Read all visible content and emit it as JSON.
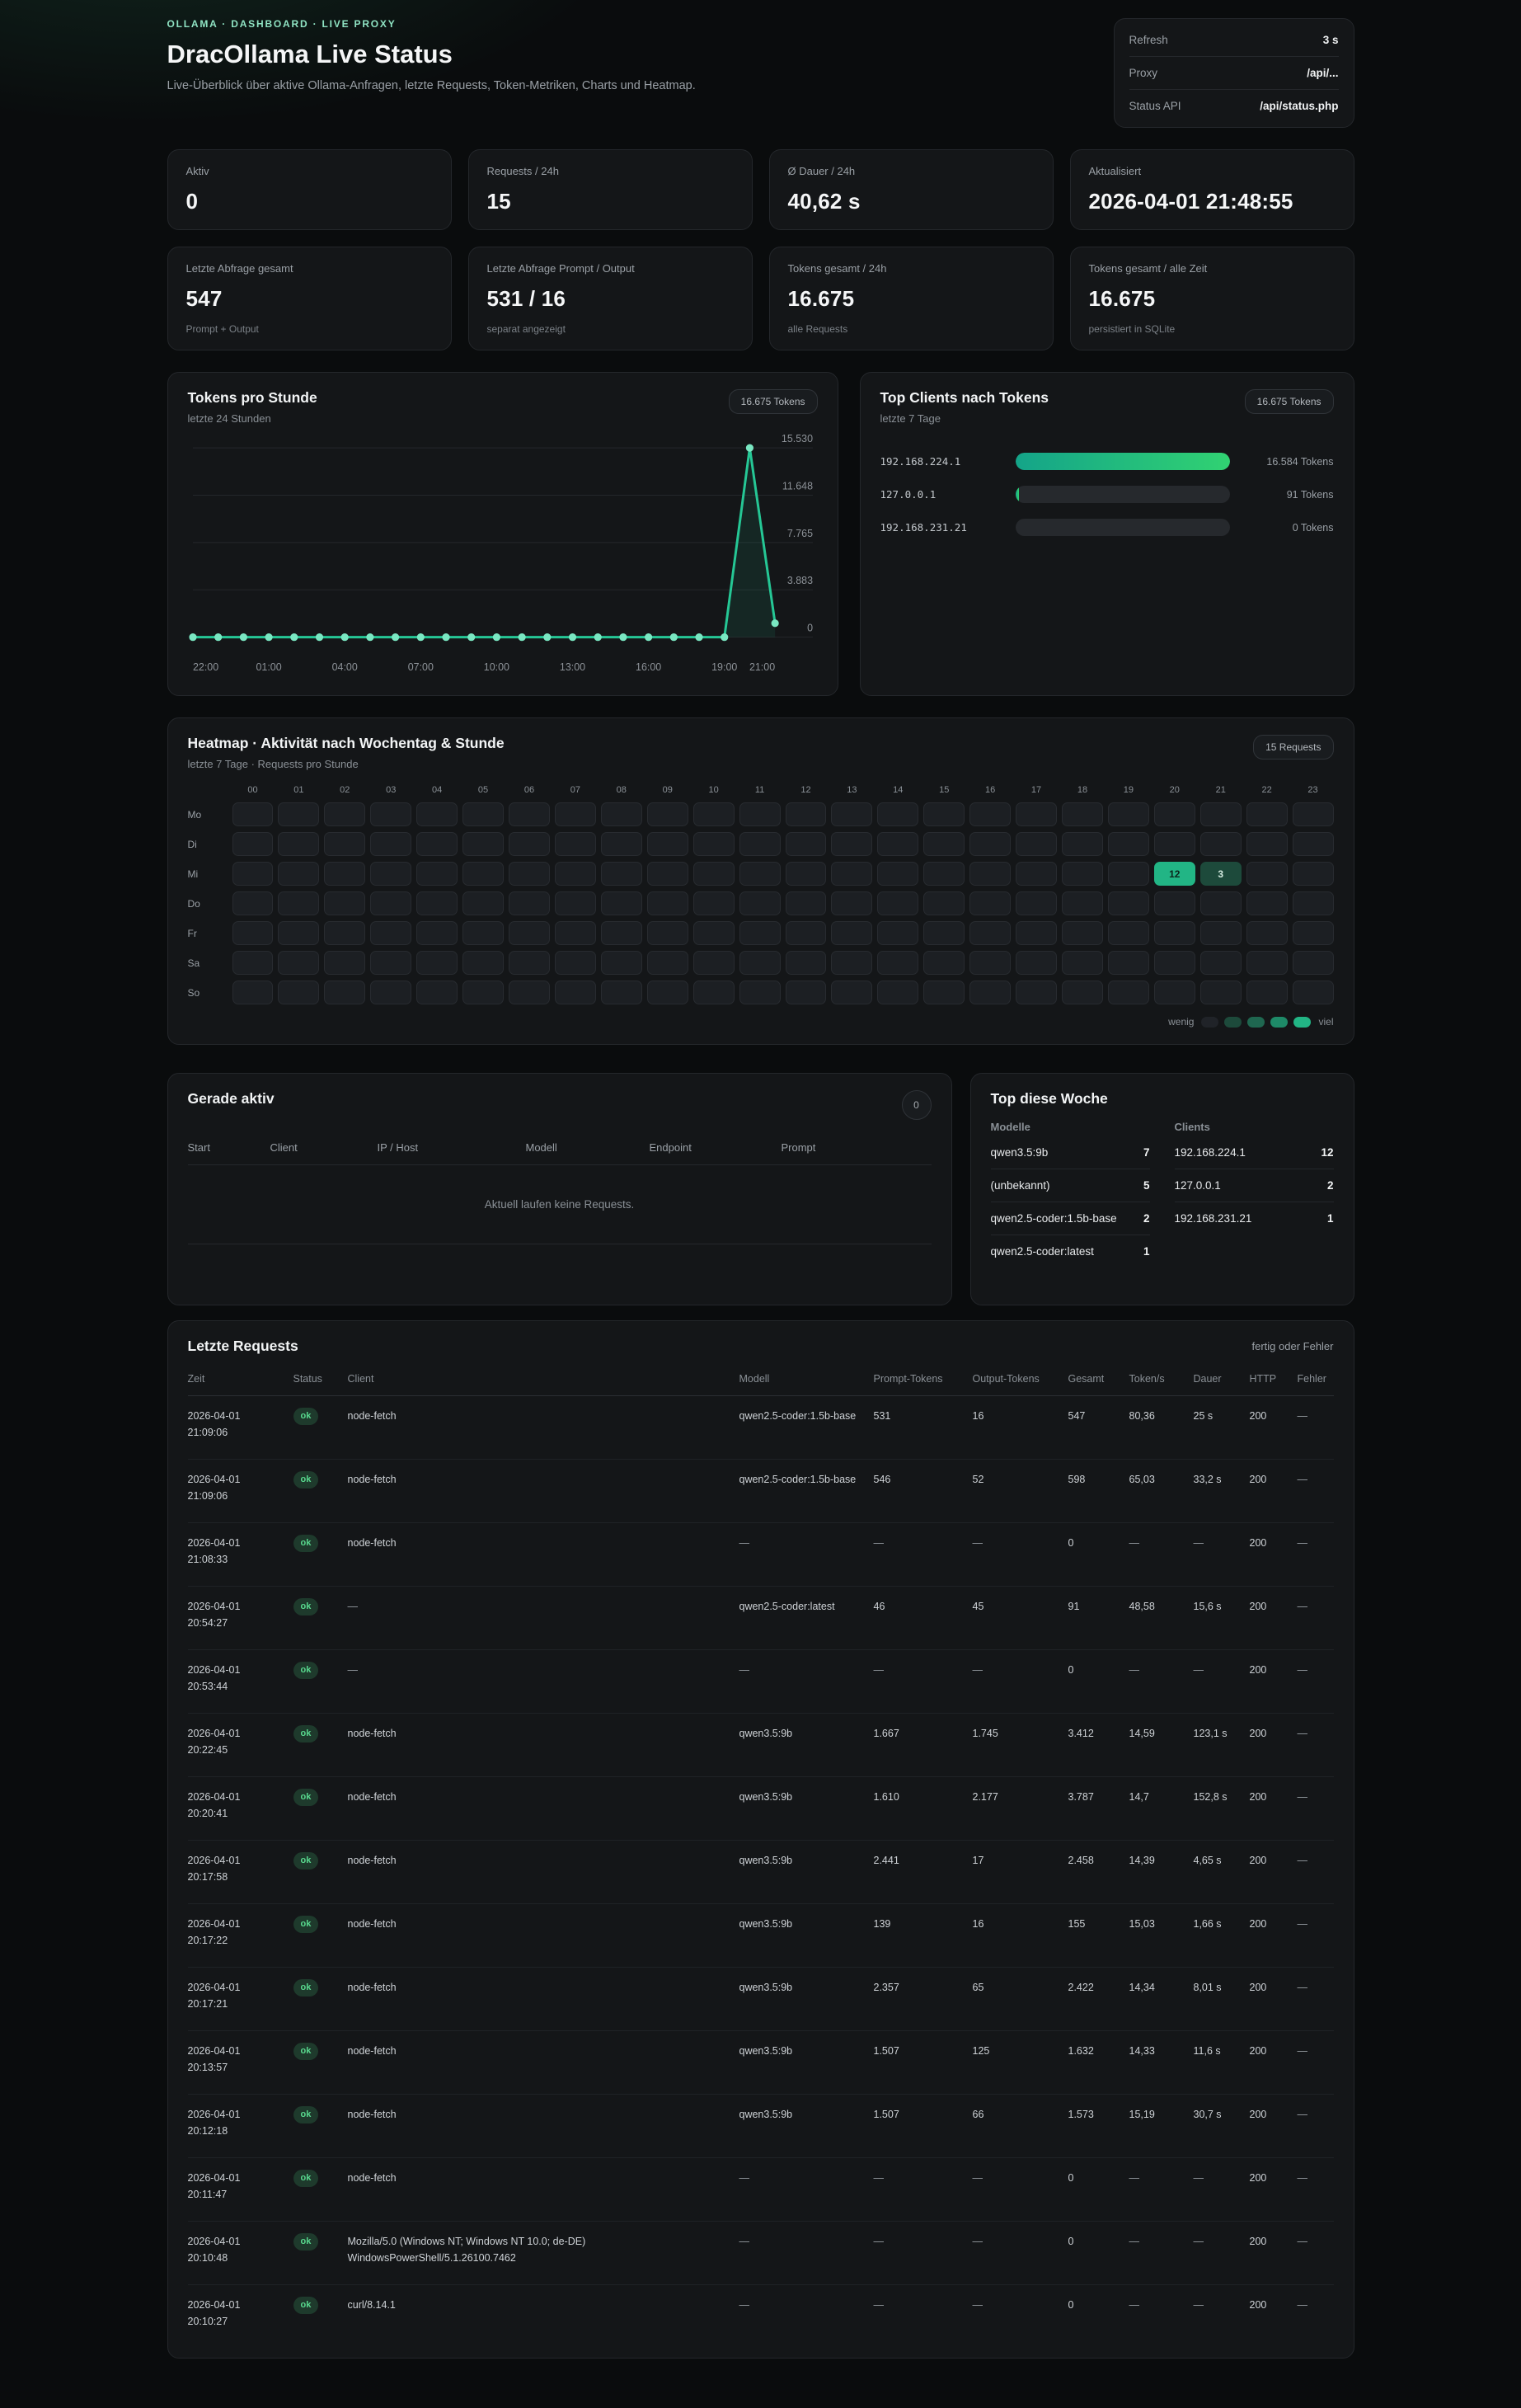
{
  "colors": {
    "accent": "#25c795",
    "heat_levels": [
      "#202328",
      "#1d4a3b",
      "#1f6750",
      "#1e8a68",
      "#22b585"
    ],
    "bar_gradient": [
      "#14a489",
      "#31d272"
    ],
    "ok_badge_text": "#58d88d"
  },
  "header": {
    "breadcrumb": "OLLAMA · DASHBOARD · LIVE PROXY",
    "title": "DracOllama Live Status",
    "subtitle": "Live-Überblick über aktive Ollama-Anfragen, letzte Requests, Token-Metriken, Charts und Heatmap.",
    "info": [
      {
        "label": "Refresh",
        "value": "3 s"
      },
      {
        "label": "Proxy",
        "value": "/api/..."
      },
      {
        "label": "Status API",
        "value": "/api/status.php"
      }
    ]
  },
  "stats_row1": [
    {
      "label": "Aktiv",
      "value": "0",
      "sub": ""
    },
    {
      "label": "Requests / 24h",
      "value": "15",
      "sub": ""
    },
    {
      "label": "Ø Dauer / 24h",
      "value": "40,62 s",
      "sub": ""
    },
    {
      "label": "Aktualisiert",
      "value": "2026-04-01 21:48:55",
      "sub": ""
    }
  ],
  "stats_row2": [
    {
      "label": "Letzte Abfrage gesamt",
      "value": "547",
      "sub": "Prompt + Output"
    },
    {
      "label": "Letzte Abfrage Prompt / Output",
      "value": "531 / 16",
      "sub": "separat angezeigt"
    },
    {
      "label": "Tokens gesamt / 24h",
      "value": "16.675",
      "sub": "alle Requests"
    },
    {
      "label": "Tokens gesamt / alle Zeit",
      "value": "16.675",
      "sub": "persistiert in SQLite"
    }
  ],
  "chart_data": {
    "type": "line",
    "title": "Tokens pro Stunde",
    "subtitle": "letzte 24 Stunden",
    "badge": "16.675 Tokens",
    "x": [
      "22:00",
      "23:00",
      "00:00",
      "01:00",
      "02:00",
      "03:00",
      "04:00",
      "05:00",
      "06:00",
      "07:00",
      "08:00",
      "09:00",
      "10:00",
      "11:00",
      "12:00",
      "13:00",
      "14:00",
      "15:00",
      "16:00",
      "17:00",
      "18:00",
      "19:00",
      "20:00",
      "21:00"
    ],
    "values": [
      0,
      0,
      0,
      0,
      0,
      0,
      0,
      0,
      0,
      0,
      0,
      0,
      0,
      0,
      0,
      0,
      0,
      0,
      0,
      0,
      0,
      0,
      15530,
      1145
    ],
    "ylim": [
      0,
      15530
    ],
    "grid": true,
    "legend": false,
    "y_ticks": [
      {
        "value": 0,
        "label": "0"
      },
      {
        "value": 3883,
        "label": "3.883"
      },
      {
        "value": 7765,
        "label": "7.765"
      },
      {
        "value": 11648,
        "label": "11.648"
      },
      {
        "value": 15530,
        "label": "15.530"
      }
    ],
    "x_ticks": [
      {
        "index": 0,
        "label": "22:00"
      },
      {
        "index": 3,
        "label": "01:00"
      },
      {
        "index": 6,
        "label": "04:00"
      },
      {
        "index": 9,
        "label": "07:00"
      },
      {
        "index": 12,
        "label": "10:00"
      },
      {
        "index": 15,
        "label": "13:00"
      },
      {
        "index": 18,
        "label": "16:00"
      },
      {
        "index": 21,
        "label": "19:00"
      },
      {
        "index": 23,
        "label": "21:00"
      }
    ]
  },
  "top_clients": {
    "title": "Top Clients nach Tokens",
    "subtitle": "letzte 7 Tage",
    "badge": "16.675 Tokens",
    "rows": [
      {
        "ip": "192.168.224.1",
        "tokens": 16584,
        "label": "16.584 Tokens"
      },
      {
        "ip": "127.0.0.1",
        "tokens": 91,
        "label": "91 Tokens"
      },
      {
        "ip": "192.168.231.21",
        "tokens": 0,
        "label": "0 Tokens"
      }
    ]
  },
  "heatmap": {
    "title": "Heatmap · Aktivität nach Wochentag & Stunde",
    "subtitle": "letzte 7 Tage · Requests pro Stunde",
    "badge": "15 Requests",
    "hours": [
      "00",
      "01",
      "02",
      "03",
      "04",
      "05",
      "06",
      "07",
      "08",
      "09",
      "10",
      "11",
      "12",
      "13",
      "14",
      "15",
      "16",
      "17",
      "18",
      "19",
      "20",
      "21",
      "22",
      "23"
    ],
    "days": [
      "Mo",
      "Di",
      "Mi",
      "Do",
      "Fr",
      "Sa",
      "So"
    ],
    "max": 12,
    "cells": [
      {
        "day": "Mi",
        "hour": 20,
        "value": 12
      },
      {
        "day": "Mi",
        "hour": 21,
        "value": 3
      }
    ],
    "legend_low": "wenig",
    "legend_high": "viel"
  },
  "active": {
    "title": "Gerade aktiv",
    "badge": "0",
    "columns": [
      "Start",
      "Client",
      "IP / Host",
      "Modell",
      "Endpoint",
      "Prompt"
    ],
    "empty_message": "Aktuell laufen keine Requests."
  },
  "top_week": {
    "title": "Top diese Woche",
    "models_label": "Modelle",
    "clients_label": "Clients",
    "models": [
      {
        "name": "qwen3.5:9b",
        "count": "7"
      },
      {
        "name": "(unbekannt)",
        "count": "5"
      },
      {
        "name": "qwen2.5-coder:1.5b-base",
        "count": "2"
      },
      {
        "name": "qwen2.5-coder:latest",
        "count": "1"
      }
    ],
    "clients": [
      {
        "name": "192.168.224.1",
        "count": "12"
      },
      {
        "name": "127.0.0.1",
        "count": "2"
      },
      {
        "name": "192.168.231.21",
        "count": "1"
      }
    ]
  },
  "requests": {
    "title": "Letzte Requests",
    "note": "fertig oder Fehler",
    "columns": [
      "Zeit",
      "Status",
      "Client",
      "Modell",
      "Prompt-Tokens",
      "Output-Tokens",
      "Gesamt",
      "Token/s",
      "Dauer",
      "HTTP",
      "Fehler"
    ],
    "rows": [
      {
        "date": "2026-04-01",
        "time": "21:09:06",
        "status": "ok",
        "client": "node-fetch",
        "modell": "qwen2.5-coder:1.5b-base",
        "prompt": "531",
        "output": "16",
        "gesamt": "547",
        "tokens_s": "80,36",
        "dauer": "25 s",
        "http": "200",
        "fehler": "—"
      },
      {
        "date": "2026-04-01",
        "time": "21:09:06",
        "status": "ok",
        "client": "node-fetch",
        "modell": "qwen2.5-coder:1.5b-base",
        "prompt": "546",
        "output": "52",
        "gesamt": "598",
        "tokens_s": "65,03",
        "dauer": "33,2 s",
        "http": "200",
        "fehler": "—"
      },
      {
        "date": "2026-04-01",
        "time": "21:08:33",
        "status": "ok",
        "client": "node-fetch",
        "modell": "—",
        "prompt": "—",
        "output": "—",
        "gesamt": "0",
        "tokens_s": "—",
        "dauer": "—",
        "http": "200",
        "fehler": "—"
      },
      {
        "date": "2026-04-01",
        "time": "20:54:27",
        "status": "ok",
        "client": "—",
        "modell": "qwen2.5-coder:latest",
        "prompt": "46",
        "output": "45",
        "gesamt": "91",
        "tokens_s": "48,58",
        "dauer": "15,6 s",
        "http": "200",
        "fehler": "—"
      },
      {
        "date": "2026-04-01",
        "time": "20:53:44",
        "status": "ok",
        "client": "—",
        "modell": "—",
        "prompt": "—",
        "output": "—",
        "gesamt": "0",
        "tokens_s": "—",
        "dauer": "—",
        "http": "200",
        "fehler": "—"
      },
      {
        "date": "2026-04-01",
        "time": "20:22:45",
        "status": "ok",
        "client": "node-fetch",
        "modell": "qwen3.5:9b",
        "prompt": "1.667",
        "output": "1.745",
        "gesamt": "3.412",
        "tokens_s": "14,59",
        "dauer": "123,1 s",
        "http": "200",
        "fehler": "—"
      },
      {
        "date": "2026-04-01",
        "time": "20:20:41",
        "status": "ok",
        "client": "node-fetch",
        "modell": "qwen3.5:9b",
        "prompt": "1.610",
        "output": "2.177",
        "gesamt": "3.787",
        "tokens_s": "14,7",
        "dauer": "152,8 s",
        "http": "200",
        "fehler": "—"
      },
      {
        "date": "2026-04-01",
        "time": "20:17:58",
        "status": "ok",
        "client": "node-fetch",
        "modell": "qwen3.5:9b",
        "prompt": "2.441",
        "output": "17",
        "gesamt": "2.458",
        "tokens_s": "14,39",
        "dauer": "4,65 s",
        "http": "200",
        "fehler": "—"
      },
      {
        "date": "2026-04-01",
        "time": "20:17:22",
        "status": "ok",
        "client": "node-fetch",
        "modell": "qwen3.5:9b",
        "prompt": "139",
        "output": "16",
        "gesamt": "155",
        "tokens_s": "15,03",
        "dauer": "1,66 s",
        "http": "200",
        "fehler": "—"
      },
      {
        "date": "2026-04-01",
        "time": "20:17:21",
        "status": "ok",
        "client": "node-fetch",
        "modell": "qwen3.5:9b",
        "prompt": "2.357",
        "output": "65",
        "gesamt": "2.422",
        "tokens_s": "14,34",
        "dauer": "8,01 s",
        "http": "200",
        "fehler": "—"
      },
      {
        "date": "2026-04-01",
        "time": "20:13:57",
        "status": "ok",
        "client": "node-fetch",
        "modell": "qwen3.5:9b",
        "prompt": "1.507",
        "output": "125",
        "gesamt": "1.632",
        "tokens_s": "14,33",
        "dauer": "11,6 s",
        "http": "200",
        "fehler": "—"
      },
      {
        "date": "2026-04-01",
        "time": "20:12:18",
        "status": "ok",
        "client": "node-fetch",
        "modell": "qwen3.5:9b",
        "prompt": "1.507",
        "output": "66",
        "gesamt": "1.573",
        "tokens_s": "15,19",
        "dauer": "30,7 s",
        "http": "200",
        "fehler": "—"
      },
      {
        "date": "2026-04-01",
        "time": "20:11:47",
        "status": "ok",
        "client": "node-fetch",
        "modell": "—",
        "prompt": "—",
        "output": "—",
        "gesamt": "0",
        "tokens_s": "—",
        "dauer": "—",
        "http": "200",
        "fehler": "—"
      },
      {
        "date": "2026-04-01",
        "time": "20:10:48",
        "status": "ok",
        "client": "Mozilla/5.0 (Windows NT; Windows NT 10.0; de-DE) WindowsPowerShell/5.1.26100.7462",
        "modell": "—",
        "prompt": "—",
        "output": "—",
        "gesamt": "0",
        "tokens_s": "—",
        "dauer": "—",
        "http": "200",
        "fehler": "—"
      },
      {
        "date": "2026-04-01",
        "time": "20:10:27",
        "status": "ok",
        "client": "curl/8.14.1",
        "modell": "—",
        "prompt": "—",
        "output": "—",
        "gesamt": "0",
        "tokens_s": "—",
        "dauer": "—",
        "http": "200",
        "fehler": "—"
      }
    ]
  }
}
